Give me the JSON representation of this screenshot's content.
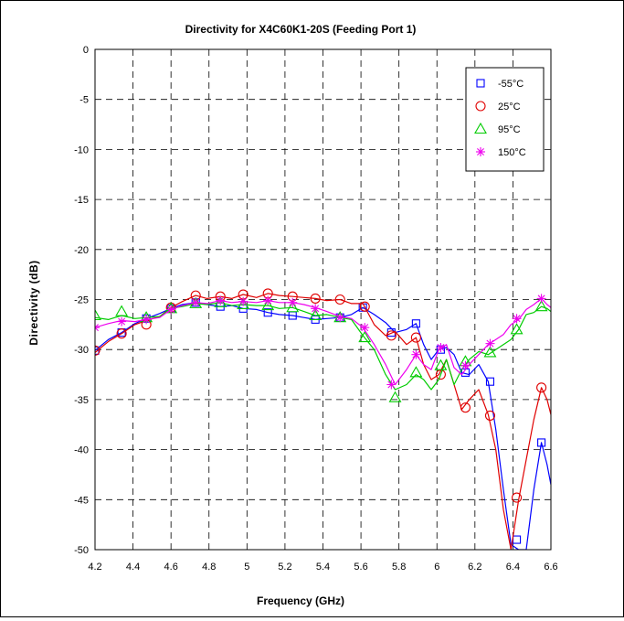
{
  "chart_data": {
    "type": "line",
    "title": "Directivity for X4C60K1-20S (Feeding Port 1)",
    "xlabel": "Frequency (GHz)",
    "ylabel": "Directivity (dB)",
    "xlim": [
      4.2,
      6.6
    ],
    "ylim": [
      -50,
      0
    ],
    "xticks": [
      "4.2",
      "4.4",
      "4.6",
      "4.8",
      "5",
      "5.2",
      "5.4",
      "5.6",
      "5.8",
      "6",
      "6.2",
      "6.4",
      "6.6"
    ],
    "yticks": [
      "0",
      "-5",
      "-10",
      "-15",
      "-20",
      "-25",
      "-30",
      "-35",
      "-40",
      "-45",
      "-50"
    ],
    "grid": true,
    "legend_position": "top-right",
    "series": [
      {
        "name": "-55°C",
        "color": "#0000ff",
        "marker": "square",
        "x": [
          4.2,
          4.27,
          4.34,
          4.41,
          4.47,
          4.54,
          4.6,
          4.66,
          4.73,
          4.79,
          4.86,
          4.92,
          4.98,
          5.05,
          5.11,
          5.17,
          5.24,
          5.3,
          5.36,
          5.42,
          5.49,
          5.55,
          5.61,
          5.67,
          5.73,
          5.78,
          5.84,
          5.89,
          5.93,
          5.97,
          6.01,
          6.05,
          6.09,
          6.13,
          6.17,
          6.22,
          6.27,
          6.31,
          6.35,
          6.39,
          6.43,
          6.47,
          6.51,
          6.55,
          6.58,
          6.6
        ],
        "values": [
          -30.1,
          -29.0,
          -28.3,
          -27.4,
          -26.9,
          -26.4,
          -25.9,
          -25.5,
          -25.3,
          -25.5,
          -25.7,
          -25.6,
          -25.9,
          -26.0,
          -26.3,
          -26.5,
          -26.6,
          -26.8,
          -27.0,
          -26.9,
          -26.8,
          -26.5,
          -25.8,
          -26.5,
          -27.3,
          -28.3,
          -28.0,
          -27.4,
          -29.5,
          -31.0,
          -30.0,
          -29.8,
          -30.5,
          -32.3,
          -32.5,
          -31.5,
          -33.2,
          -38.0,
          -44.0,
          -49.5,
          -50.0,
          -50.0,
          -44.0,
          -39.3,
          -41.5,
          -43.5
        ],
        "markers": [
          [
            4.2,
            -30.1
          ],
          [
            4.34,
            -28.3
          ],
          [
            4.47,
            -26.9
          ],
          [
            4.6,
            -25.9
          ],
          [
            4.73,
            -25.3
          ],
          [
            4.86,
            -25.7
          ],
          [
            4.98,
            -25.9
          ],
          [
            5.11,
            -26.3
          ],
          [
            5.24,
            -26.6
          ],
          [
            5.36,
            -27.0
          ],
          [
            5.49,
            -26.8
          ],
          [
            5.61,
            -25.8
          ],
          [
            5.76,
            -28.3
          ],
          [
            5.89,
            -27.4
          ],
          [
            6.02,
            -30.0
          ],
          [
            6.15,
            -32.3
          ],
          [
            6.28,
            -33.2
          ],
          [
            6.42,
            -49.0
          ],
          [
            6.55,
            -39.3
          ]
        ]
      },
      {
        "name": "25°C",
        "color": "#e00000",
        "marker": "circle",
        "x": [
          4.2,
          4.27,
          4.34,
          4.41,
          4.47,
          4.54,
          4.6,
          4.66,
          4.73,
          4.79,
          4.86,
          4.92,
          4.98,
          5.05,
          5.11,
          5.17,
          5.24,
          5.3,
          5.36,
          5.42,
          5.49,
          5.55,
          5.61,
          5.67,
          5.73,
          5.78,
          5.84,
          5.89,
          5.93,
          5.97,
          6.01,
          6.05,
          6.09,
          6.13,
          6.17,
          6.22,
          6.27,
          6.31,
          6.35,
          6.39,
          6.43,
          6.47,
          6.51,
          6.55,
          6.58,
          6.6
        ],
        "values": [
          -30.3,
          -29.2,
          -28.4,
          -27.5,
          -27.1,
          -26.7,
          -25.8,
          -25.2,
          -24.6,
          -24.9,
          -24.7,
          -24.9,
          -24.5,
          -24.8,
          -24.4,
          -24.6,
          -24.7,
          -24.8,
          -24.9,
          -25.1,
          -25.0,
          -25.4,
          -25.4,
          -27.5,
          -28.6,
          -28.2,
          -29.5,
          -28.8,
          -31.5,
          -33.0,
          -32.5,
          -31.0,
          -33.5,
          -36.0,
          -35.0,
          -34.0,
          -36.5,
          -40.0,
          -46.0,
          -50.0,
          -45.0,
          -41.0,
          -37.0,
          -33.8,
          -35.0,
          -36.5
        ],
        "markers": [
          [
            4.2,
            -30.1
          ],
          [
            4.34,
            -28.4
          ],
          [
            4.47,
            -27.5
          ],
          [
            4.6,
            -25.8
          ],
          [
            4.73,
            -24.6
          ],
          [
            4.86,
            -24.7
          ],
          [
            4.98,
            -24.5
          ],
          [
            5.11,
            -24.4
          ],
          [
            5.24,
            -24.7
          ],
          [
            5.36,
            -24.9
          ],
          [
            5.49,
            -25.0
          ],
          [
            5.62,
            -25.7
          ],
          [
            5.76,
            -28.6
          ],
          [
            5.89,
            -28.8
          ],
          [
            6.02,
            -32.5
          ],
          [
            6.15,
            -35.8
          ],
          [
            6.28,
            -36.6
          ],
          [
            6.42,
            -44.8
          ],
          [
            6.55,
            -33.8
          ]
        ]
      },
      {
        "name": "95°C",
        "color": "#00cc00",
        "marker": "triangle",
        "x": [
          4.2,
          4.27,
          4.34,
          4.41,
          4.47,
          4.54,
          4.6,
          4.66,
          4.73,
          4.79,
          4.86,
          4.92,
          4.98,
          5.05,
          5.11,
          5.17,
          5.24,
          5.3,
          5.36,
          5.42,
          5.49,
          5.55,
          5.61,
          5.67,
          5.73,
          5.78,
          5.84,
          5.89,
          5.93,
          5.97,
          6.01,
          6.05,
          6.09,
          6.13,
          6.17,
          6.22,
          6.27,
          6.31,
          6.35,
          6.39,
          6.43,
          6.47,
          6.51,
          6.55,
          6.58,
          6.6
        ],
        "values": [
          -26.8,
          -27.0,
          -26.6,
          -26.9,
          -26.8,
          -26.7,
          -25.9,
          -25.7,
          -25.4,
          -25.5,
          -25.3,
          -25.6,
          -25.5,
          -25.6,
          -25.6,
          -25.9,
          -25.8,
          -26.2,
          -26.6,
          -26.5,
          -26.8,
          -27.0,
          -28.6,
          -30.0,
          -32.5,
          -34.0,
          -33.5,
          -32.5,
          -33.0,
          -34.0,
          -33.0,
          -31.0,
          -33.5,
          -32.0,
          -31.0,
          -30.2,
          -30.5,
          -30.0,
          -29.5,
          -29.0,
          -28.0,
          -26.5,
          -26.3,
          -25.7,
          -25.9,
          -26.2
        ],
        "markers": [
          [
            4.2,
            -26.6
          ],
          [
            4.34,
            -26.2
          ],
          [
            4.47,
            -26.8
          ],
          [
            4.6,
            -25.9
          ],
          [
            4.73,
            -25.4
          ],
          [
            4.86,
            -25.3
          ],
          [
            4.98,
            -25.5
          ],
          [
            5.11,
            -25.6
          ],
          [
            5.24,
            -25.8
          ],
          [
            5.36,
            -26.6
          ],
          [
            5.49,
            -26.8
          ],
          [
            5.62,
            -28.8
          ],
          [
            5.78,
            -34.8
          ],
          [
            5.89,
            -32.3
          ],
          [
            6.02,
            -31.6
          ],
          [
            6.15,
            -31.2
          ],
          [
            6.28,
            -30.3
          ],
          [
            6.42,
            -28.0
          ],
          [
            6.55,
            -25.7
          ]
        ]
      },
      {
        "name": "150°C",
        "color": "#ee00ee",
        "marker": "asterisk",
        "x": [
          4.2,
          4.27,
          4.34,
          4.41,
          4.47,
          4.54,
          4.6,
          4.66,
          4.73,
          4.79,
          4.86,
          4.92,
          4.98,
          5.05,
          5.11,
          5.17,
          5.24,
          5.3,
          5.36,
          5.42,
          5.49,
          5.55,
          5.61,
          5.67,
          5.73,
          5.78,
          5.84,
          5.89,
          5.93,
          5.97,
          6.01,
          6.05,
          6.09,
          6.13,
          6.17,
          6.22,
          6.27,
          6.31,
          6.35,
          6.39,
          6.43,
          6.47,
          6.51,
          6.55,
          6.58,
          6.6
        ],
        "values": [
          -27.8,
          -27.4,
          -27.1,
          -27.2,
          -27.0,
          -26.8,
          -26.0,
          -25.6,
          -25.3,
          -25.4,
          -25.1,
          -25.3,
          -25.2,
          -25.3,
          -25.1,
          -25.3,
          -25.3,
          -25.5,
          -25.8,
          -26.2,
          -26.7,
          -26.9,
          -27.8,
          -29.5,
          -31.5,
          -33.5,
          -32.0,
          -30.5,
          -31.5,
          -32.0,
          -30.0,
          -29.5,
          -31.8,
          -32.5,
          -31.5,
          -30.5,
          -29.5,
          -29.0,
          -28.5,
          -27.5,
          -27.0,
          -26.0,
          -25.5,
          -24.9,
          -25.5,
          -25.8
        ],
        "markers": [
          [
            4.2,
            -27.8
          ],
          [
            4.34,
            -27.2
          ],
          [
            4.47,
            -27.0
          ],
          [
            4.6,
            -26.0
          ],
          [
            4.73,
            -25.3
          ],
          [
            4.86,
            -25.1
          ],
          [
            4.98,
            -25.2
          ],
          [
            5.11,
            -25.1
          ],
          [
            5.24,
            -25.3
          ],
          [
            5.36,
            -25.9
          ],
          [
            5.49,
            -26.8
          ],
          [
            5.62,
            -27.8
          ],
          [
            5.76,
            -33.5
          ],
          [
            5.89,
            -30.5
          ],
          [
            6.02,
            -29.8
          ],
          [
            6.15,
            -31.6
          ],
          [
            6.28,
            -29.4
          ],
          [
            6.42,
            -26.9
          ],
          [
            6.55,
            -24.9
          ]
        ]
      }
    ]
  }
}
